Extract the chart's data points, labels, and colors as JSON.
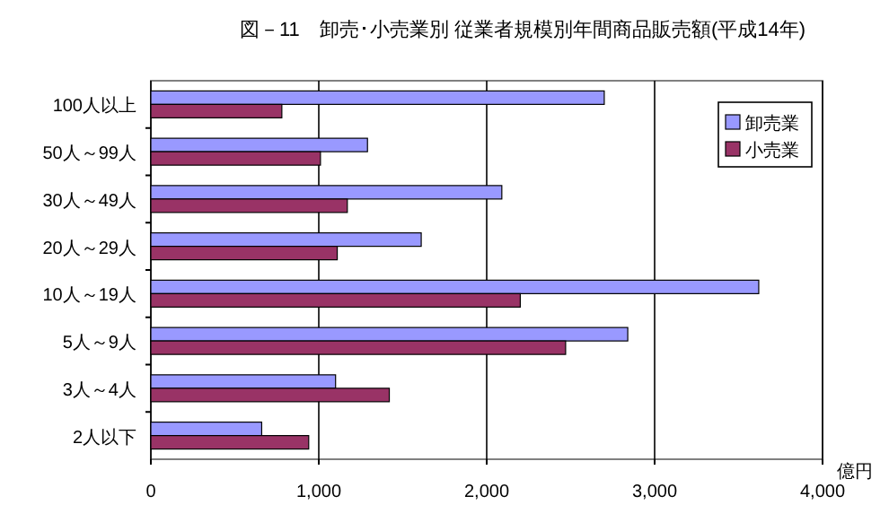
{
  "chart_data": {
    "type": "bar",
    "orientation": "horizontal",
    "title": "図－11　卸売･小売業別 従業者規模別年間商品販売額(平成14年)",
    "xlabel": "億円",
    "categories": [
      "100人以上",
      "50人～99人",
      "30人～49人",
      "20人～29人",
      "10人～19人",
      "5人～9人",
      "3人～4人",
      "2人以下"
    ],
    "series": [
      {
        "name": "卸売業",
        "color": "#9999ff",
        "values": [
          2700,
          1290,
          2090,
          1610,
          3620,
          2840,
          1100,
          660
        ]
      },
      {
        "name": "小売業",
        "color": "#993366",
        "values": [
          780,
          1010,
          1170,
          1110,
          2200,
          2470,
          1420,
          940
        ]
      }
    ],
    "xlim": [
      0,
      4000
    ],
    "xticks": [
      0,
      {
        "value": 1000,
        "label": "1,000"
      },
      {
        "value": 2000,
        "label": "2,000"
      },
      {
        "value": 3000,
        "label": "3,000"
      },
      {
        "value": 4000,
        "label": "4,000"
      }
    ],
    "grid": "x",
    "legend": "top right"
  }
}
